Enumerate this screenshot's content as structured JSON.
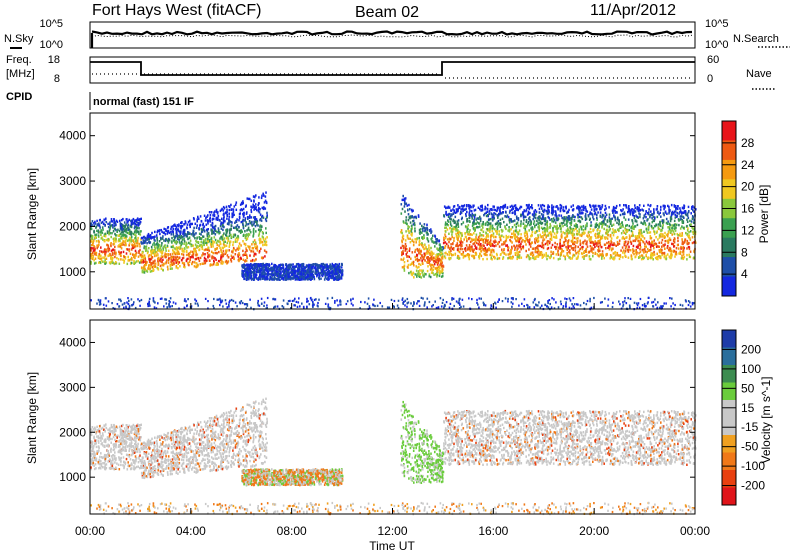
{
  "header": {
    "station": "Fort Hays West (fitACF)",
    "beam": "Beam 02",
    "date": "11/Apr/2012"
  },
  "status_panels": {
    "nsky_label": "N.Sky",
    "nsearch_label": "N.Search",
    "nsky_ticks": [
      "10^5",
      "10^0"
    ],
    "nsearch_ticks": [
      "10^5",
      "10^0"
    ],
    "freq_label": "Freq.",
    "freq_unit": "[MHz]",
    "freq_ticks": [
      "18",
      "8"
    ],
    "nave_label": "Nave",
    "nave_ticks": [
      "60",
      "0"
    ],
    "cpid_label": "CPID",
    "cpid_text": "normal (fast) 151 IF"
  },
  "chart_data": [
    {
      "type": "heatmap",
      "name": "power",
      "ylabel": "Slant Range [km]",
      "xlabel": "",
      "y_ticks": [
        "1000",
        "2000",
        "3000",
        "4000"
      ],
      "ylim": [
        180,
        4500
      ],
      "colorbar_label": "Power [dB]",
      "colorbar_ticks": [
        "28",
        "24",
        "20",
        "16",
        "12",
        "8",
        "4"
      ],
      "colorbar_colors": [
        "#e8141a",
        "#ee5a12",
        "#f59a10",
        "#f0c820",
        "#8ac83c",
        "#3aa050",
        "#2a7a60",
        "#1e4fa8",
        "#1428e0"
      ],
      "series": [
        {
          "t": [
            0.0,
            0.5,
            1.0,
            1.5,
            2.0
          ],
          "low": 1200,
          "high": 2200,
          "core": 1500
        },
        {
          "t": [
            2.0,
            3.0,
            4.0,
            5.0,
            6.0,
            7.0
          ],
          "low": 1000,
          "high": 2800,
          "core": 1300
        },
        {
          "t": [
            6.0,
            7.0,
            8.0,
            9.0,
            10.0
          ],
          "low": 850,
          "high": 1200,
          "core": 1000
        },
        {
          "t": [
            12.3,
            12.8,
            13.4,
            14.0
          ],
          "low": 900,
          "high": 2800,
          "core": 1200
        },
        {
          "t": [
            14.0,
            16.0,
            18.0,
            20.0,
            22.0,
            24.0
          ],
          "low": 1300,
          "high": 2500,
          "core": 1600
        }
      ]
    },
    {
      "type": "heatmap",
      "name": "velocity",
      "ylabel": "Slant Range [km]",
      "xlabel": "Time UT",
      "x_ticks": [
        "00:00",
        "04:00",
        "08:00",
        "12:00",
        "16:00",
        "20:00",
        "00:00"
      ],
      "y_ticks": [
        "1000",
        "2000",
        "3000",
        "4000"
      ],
      "ylim": [
        180,
        4500
      ],
      "colorbar_label": "Velocity [m s^-1]",
      "colorbar_ticks": [
        "200",
        "100",
        "50",
        "15",
        "-15",
        "-50",
        "-100",
        "-200"
      ],
      "colorbar_colors": [
        "#1e3ca8",
        "#2a6e9c",
        "#3c8c50",
        "#6acc3c",
        "#c8c8c8",
        "#c8c8c8",
        "#f0a020",
        "#f07818",
        "#e84010",
        "#e0141a"
      ]
    }
  ]
}
